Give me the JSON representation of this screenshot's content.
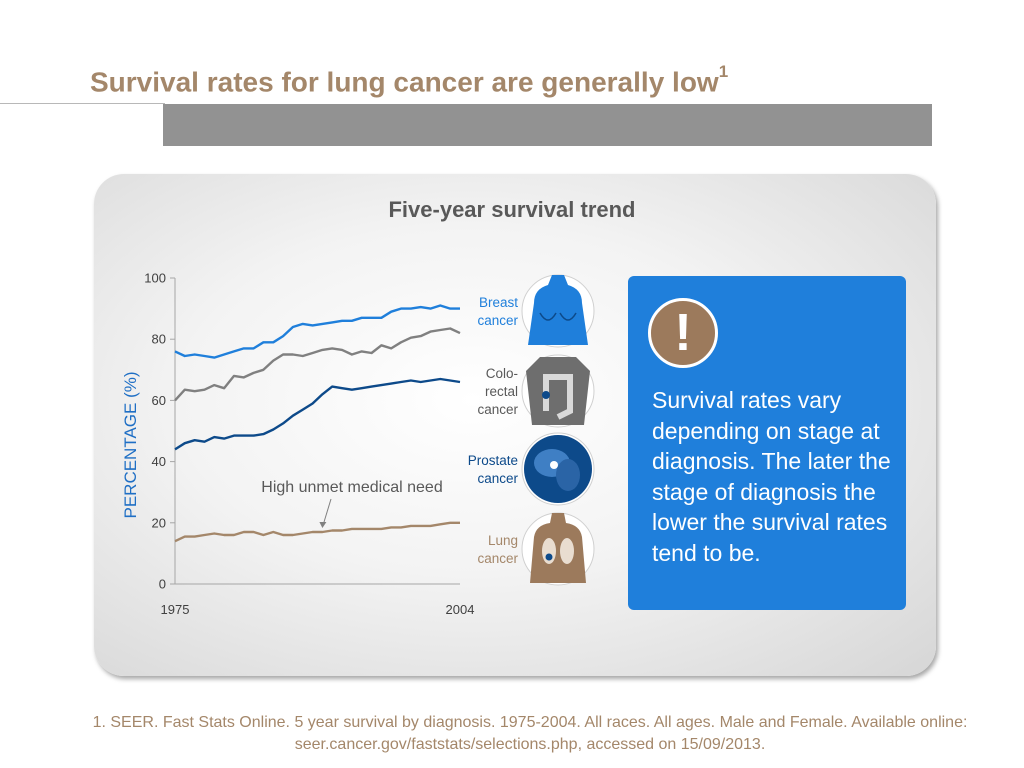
{
  "slide": {
    "title": "Survival rates for lung cancer are generally low",
    "title_superscript": "1"
  },
  "callout": {
    "icon": "exclamation-icon",
    "icon_glyph": "!",
    "text": "Survival rates vary depending on stage at diagnosis. The later the stage of diagnosis the lower the survival rates tend to be."
  },
  "footnote": {
    "line1": "1. SEER. Fast Stats Online. 5 year survival by diagnosis. 1975-2004. All races. All ages. Male and Female. Available online:",
    "line2": "seer.cancer.gov/faststats/selections.php, accessed on 15/09/2013."
  },
  "colors": {
    "title": "#a4876a",
    "breast": "#1f7fdb",
    "colorectal": "#808080",
    "prostate": "#0d4a8a",
    "lung": "#a4876a",
    "callout_bg": "#1f7fdb",
    "alert_circle": "#9c7a5c"
  },
  "chart_data": {
    "type": "line",
    "title": "Five-year survival trend",
    "ylabel": "PERCENTAGE (%)",
    "xlabel": "",
    "x": [
      1975,
      1976,
      1977,
      1978,
      1979,
      1980,
      1981,
      1982,
      1983,
      1984,
      1985,
      1986,
      1987,
      1988,
      1989,
      1990,
      1991,
      1992,
      1993,
      1994,
      1995,
      1996,
      1997,
      1998,
      1999,
      2000,
      2001,
      2002,
      2003,
      2004
    ],
    "x_tick_labels": [
      "1975",
      "2004"
    ],
    "y_ticks": [
      0,
      20,
      40,
      60,
      80,
      100
    ],
    "ylim": [
      0,
      100
    ],
    "series": [
      {
        "name": "Breast cancer",
        "label_lines": [
          "Breast",
          "cancer"
        ],
        "color": "#1f7fdb",
        "values": [
          76,
          74.5,
          75,
          74.5,
          74,
          75,
          76,
          77,
          77,
          79,
          79,
          81,
          84,
          85,
          84.5,
          85,
          85.5,
          86,
          86,
          87,
          87,
          87,
          89,
          90,
          90,
          90.5,
          90,
          91,
          90,
          90
        ]
      },
      {
        "name": "Colorectal cancer",
        "label_lines": [
          "Colo-",
          "rectal",
          "cancer"
        ],
        "color": "#808080",
        "values": [
          60,
          63.5,
          63,
          63.5,
          65,
          64,
          68,
          67.5,
          69,
          70,
          73,
          75,
          75,
          74.5,
          75.5,
          76.5,
          77,
          76.5,
          75,
          76,
          75.5,
          78,
          77,
          79,
          80.5,
          81,
          82.5,
          83,
          83.5,
          82
        ]
      },
      {
        "name": "Prostate cancer",
        "label_lines": [
          "Prostate",
          "cancer"
        ],
        "color": "#0d4a8a",
        "values": [
          44,
          46,
          47,
          46.5,
          48,
          47.5,
          48.5,
          48.5,
          48.5,
          49,
          50.5,
          52.5,
          55,
          57,
          59,
          62,
          64.5,
          64,
          63.5,
          64,
          64.5,
          65,
          65.5,
          66,
          66.5,
          66,
          66.5,
          67,
          66.5,
          66
        ]
      },
      {
        "name": "Lung cancer",
        "label_lines": [
          "Lung",
          "cancer"
        ],
        "color": "#a4876a",
        "values": [
          14,
          15.5,
          15.5,
          16,
          16.5,
          16,
          16,
          17,
          17,
          16,
          17,
          16,
          16,
          16.5,
          17,
          17,
          17.5,
          17.5,
          18,
          18,
          18,
          18,
          18.5,
          18.5,
          19,
          19,
          19,
          19.5,
          20,
          20
        ]
      }
    ],
    "annotations": [
      {
        "text": "High unmet medical need",
        "target_series": "Lung cancer",
        "target_x": 1990
      }
    ],
    "grid": false,
    "legend": "right (icon labels)"
  }
}
